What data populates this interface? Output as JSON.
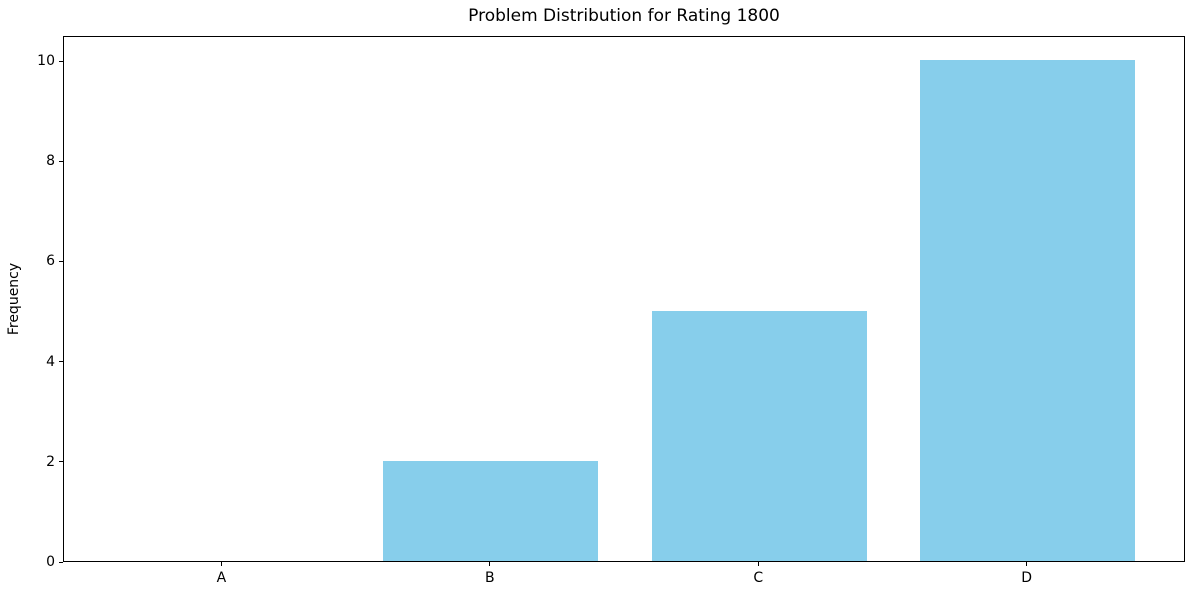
{
  "chart_data": {
    "type": "bar",
    "title": "Problem Distribution for Rating 1800",
    "xlabel": "",
    "ylabel": "Frequency",
    "categories": [
      "A",
      "B",
      "C",
      "D"
    ],
    "values": [
      0,
      2,
      5,
      10
    ],
    "yticks": [
      0,
      2,
      4,
      6,
      8,
      10
    ],
    "ylim": [
      0,
      10.5
    ],
    "xlim": [
      -0.59,
      3.59
    ],
    "bar_width": 0.8,
    "bar_color": "#87CEEB",
    "grid": "off",
    "legend": "none"
  }
}
